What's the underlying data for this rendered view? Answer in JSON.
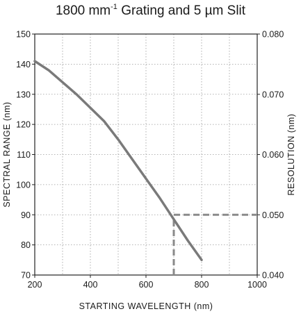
{
  "title": {
    "prefix": "1800 mm",
    "superscript": "-1",
    "suffix": " Grating and 5 µm Slit"
  },
  "chart_data": {
    "type": "line",
    "title": "1800 mm-1 Grating and 5 µm Slit",
    "xlabel": "STARTING WAVELENGTH (nm)",
    "ylabel": "SPECTRAL RANGE (nm)",
    "y2label": "RESOLUTION (nm)",
    "xlim": [
      200,
      1000
    ],
    "ylim": [
      70,
      150
    ],
    "y2lim": [
      0.04,
      0.08
    ],
    "x_ticks": [
      "200",
      "400",
      "600",
      "800",
      "1000"
    ],
    "y_ticks": [
      "70",
      "80",
      "90",
      "100",
      "110",
      "120",
      "130",
      "140",
      "150"
    ],
    "y2_ticks": [
      "0.040",
      "0.050",
      "0.060",
      "0.070",
      "0.080"
    ],
    "grid": true,
    "series": [
      {
        "role": "spectral range",
        "color": "#7a7a7a",
        "x": [
          200,
          250,
          300,
          350,
          400,
          450,
          500,
          550,
          600,
          650,
          700,
          750,
          800
        ],
        "y": [
          141,
          138,
          134,
          130,
          125.5,
          121,
          115,
          108.5,
          102,
          95.5,
          88.5,
          81.5,
          75
        ]
      }
    ],
    "annotation": {
      "style": "dashed",
      "color": "#8a8a8a",
      "x": 700,
      "y": 89,
      "resolution": 0.05
    }
  }
}
